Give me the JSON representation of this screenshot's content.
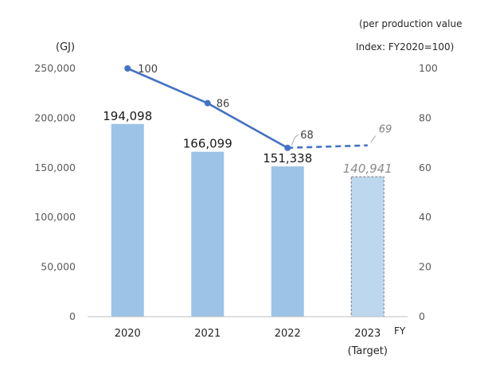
{
  "chart_data": {
    "type": "bar",
    "left_axis_unit": "(GJ)",
    "right_axis_note_line1": "(per production value",
    "right_axis_note_line2": "Index: FY2020=100)",
    "x_axis_unit": "FY",
    "categories": [
      "2020",
      "2021",
      "2022",
      "2023"
    ],
    "category_sublabels": [
      "",
      "",
      "",
      "(Target)"
    ],
    "left_ylim": [
      0,
      250000
    ],
    "left_ticks": [
      "250,000",
      "200,000",
      "150,000",
      "100,000",
      "50,000",
      "0"
    ],
    "right_ylim": [
      0,
      100
    ],
    "right_ticks": [
      "100",
      "80",
      "60",
      "40",
      "20",
      "0"
    ],
    "series": [
      {
        "kind": "bar",
        "axis": "left",
        "values": [
          194098,
          166099,
          151338,
          140941
        ],
        "labels": [
          "194,098",
          "166,099",
          "151,338",
          "140,941"
        ],
        "target_flags": [
          false,
          false,
          false,
          true
        ]
      },
      {
        "kind": "line",
        "axis": "right",
        "values": [
          100,
          86,
          68,
          69
        ],
        "labels": [
          "100",
          "86",
          "68",
          "69"
        ],
        "target_flags": [
          false,
          false,
          false,
          true
        ]
      }
    ],
    "grid": false,
    "legend": "none",
    "colors": {
      "bar": "#9dc3e6",
      "bar_target": "#bdd7ee",
      "line": "#4472c4",
      "axis": "#bfbfbf"
    }
  }
}
